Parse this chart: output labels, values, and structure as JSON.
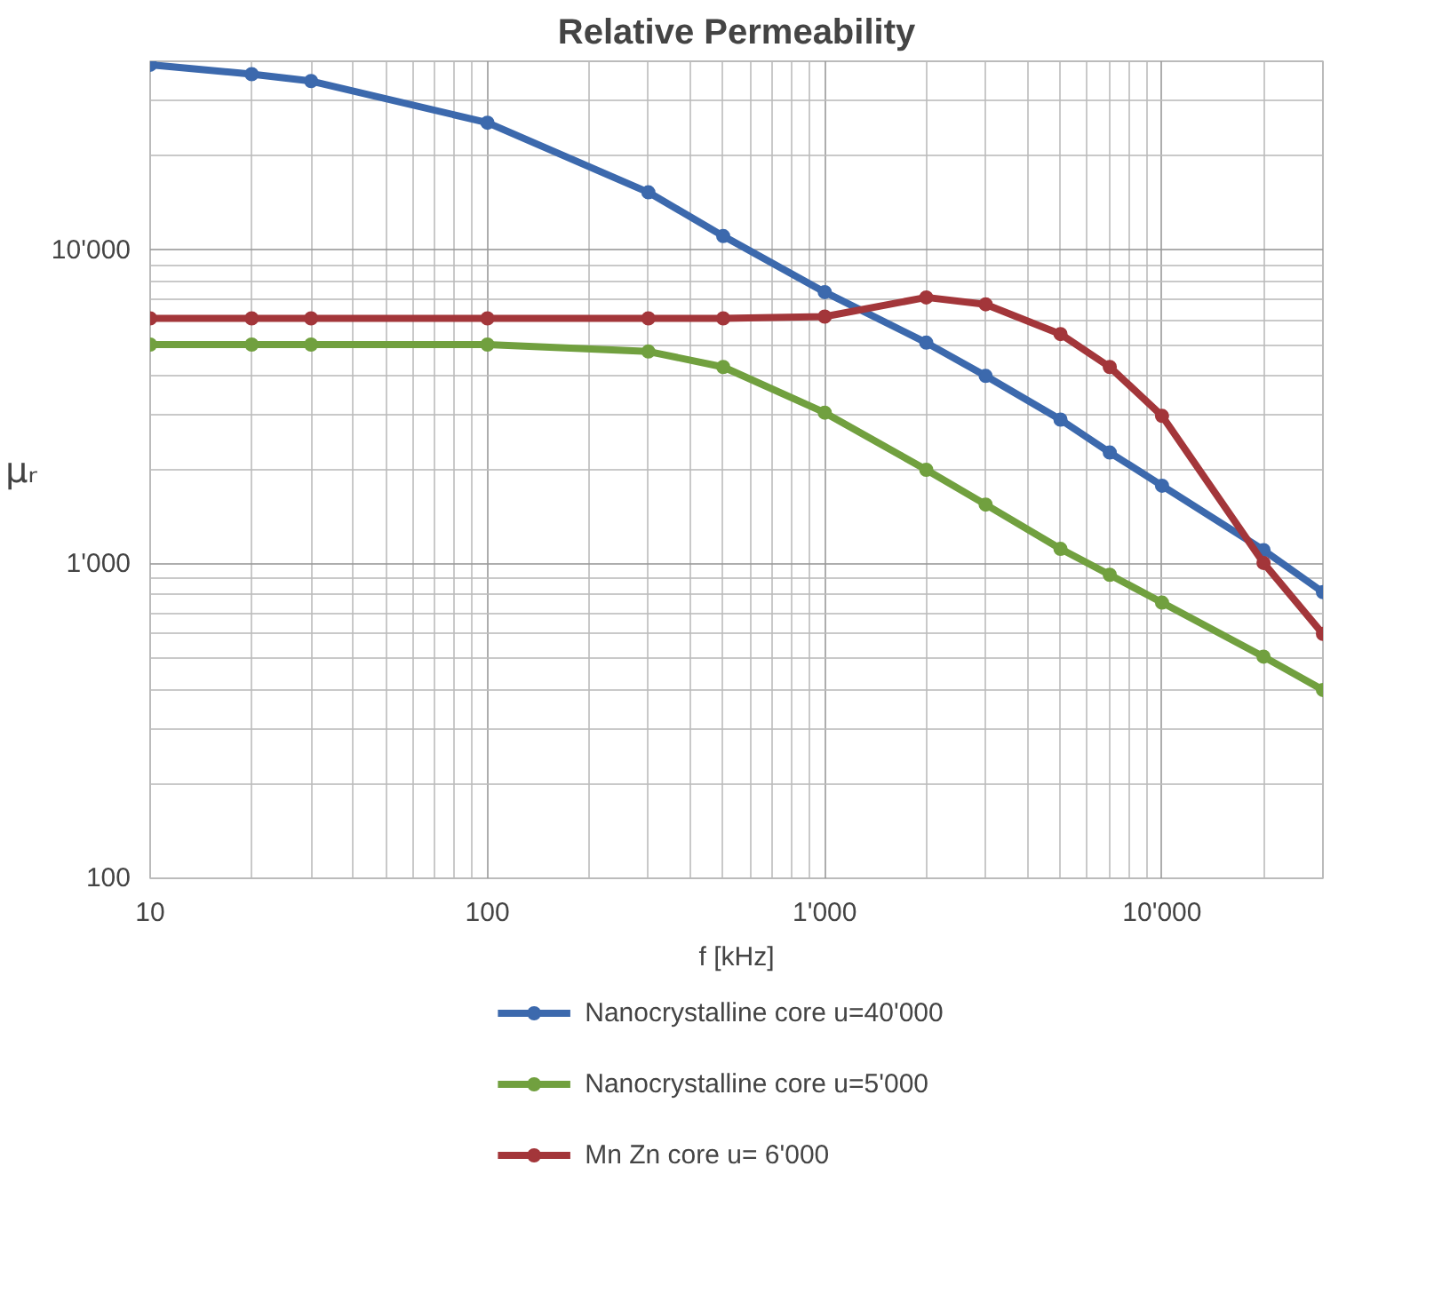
{
  "chart_data": {
    "type": "line",
    "title": "Relative Permeability",
    "xlabel": "f [kHz]",
    "ylabel": "μᵣ",
    "log": "xy",
    "grid": true,
    "legend": "bottom",
    "marker": "circle",
    "line_style": "solid",
    "xlim": [
      10,
      30000
    ],
    "ylim": [
      100,
      40000
    ],
    "xticks": [
      10,
      100,
      {
        "value": 1000,
        "label": "1'000"
      },
      {
        "value": 10000,
        "label": "10'000"
      }
    ],
    "yticks": [
      100,
      {
        "value": 1000,
        "label": "1'000"
      },
      {
        "value": 10000,
        "label": "10'000"
      }
    ],
    "x": [
      10,
      20,
      30,
      100,
      300,
      500,
      1000,
      2000,
      3000,
      5000,
      7000,
      10000,
      20000,
      30000
    ],
    "series": [
      {
        "name": "Nanocrystalline core u=40'000",
        "color": "#3c69ad",
        "values": [
          39000,
          36400,
          34600,
          25500,
          15300,
          11100,
          7360,
          5080,
          3980,
          2890,
          2270,
          1780,
          1110,
          815
        ]
      },
      {
        "name": "Nanocrystalline core u=5'000",
        "color": "#71a03f",
        "values": [
          5010,
          5010,
          5010,
          5010,
          4760,
          4250,
          3040,
          2000,
          1550,
          1120,
          926,
          755,
          508,
          398
        ]
      },
      {
        "name": "Mn Zn core u= 6'000",
        "color": "#a3363a",
        "values": [
          6070,
          6070,
          6070,
          6070,
          6070,
          6070,
          6150,
          7080,
          6730,
          5410,
          4250,
          2970,
          1010,
          600
        ]
      }
    ]
  }
}
